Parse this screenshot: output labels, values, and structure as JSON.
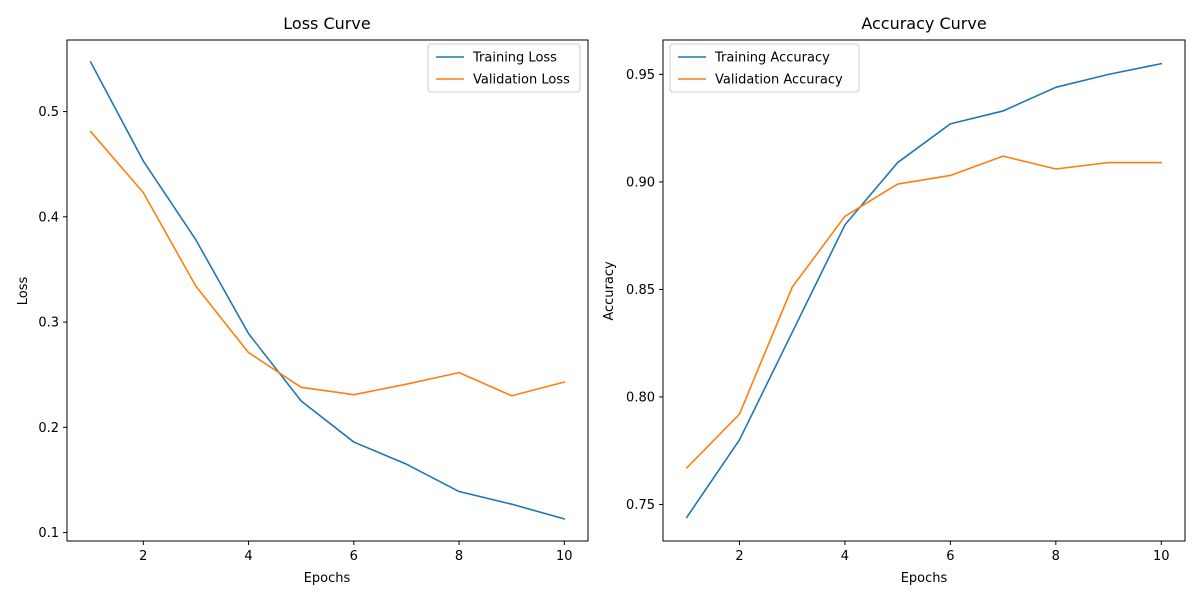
{
  "colors": {
    "series_1": "#1f77b4",
    "series_2": "#ff7f0e"
  },
  "chart_data": [
    {
      "type": "line",
      "title": "Loss Curve",
      "xlabel": "Epochs",
      "ylabel": "Loss",
      "x": [
        1,
        2,
        3,
        4,
        5,
        6,
        7,
        8,
        9,
        10
      ],
      "xlim": [
        0.55,
        10.45
      ],
      "ylim": [
        0.092,
        0.568
      ],
      "xticks": [
        2,
        4,
        6,
        8,
        10
      ],
      "xtick_labels": [
        "2",
        "4",
        "6",
        "8",
        "10"
      ],
      "yticks": [
        0.1,
        0.2,
        0.3,
        0.4,
        0.5
      ],
      "ytick_labels": [
        "0.1",
        "0.2",
        "0.3",
        "0.4",
        "0.5"
      ],
      "grid": false,
      "legend": "top-right",
      "series": [
        {
          "name": "Training Loss",
          "color": "#1f77b4",
          "values": [
            0.547,
            0.453,
            0.378,
            0.289,
            0.225,
            0.186,
            0.165,
            0.139,
            0.127,
            0.113
          ]
        },
        {
          "name": "Validation Loss",
          "color": "#ff7f0e",
          "values": [
            0.481,
            0.423,
            0.334,
            0.271,
            0.238,
            0.231,
            0.241,
            0.252,
            0.23,
            0.243
          ]
        }
      ]
    },
    {
      "type": "line",
      "title": "Accuracy Curve",
      "xlabel": "Epochs",
      "ylabel": "Accuracy",
      "x": [
        1,
        2,
        3,
        4,
        5,
        6,
        7,
        8,
        9,
        10
      ],
      "xlim": [
        0.55,
        10.45
      ],
      "ylim": [
        0.733,
        0.966
      ],
      "xticks": [
        2,
        4,
        6,
        8,
        10
      ],
      "xtick_labels": [
        "2",
        "4",
        "6",
        "8",
        "10"
      ],
      "yticks": [
        0.75,
        0.8,
        0.85,
        0.9,
        0.95
      ],
      "ytick_labels": [
        "0.75",
        "0.80",
        "0.85",
        "0.90",
        "0.95"
      ],
      "grid": false,
      "legend": "top-left",
      "series": [
        {
          "name": "Training Accuracy",
          "color": "#1f77b4",
          "values": [
            0.744,
            0.78,
            0.83,
            0.88,
            0.909,
            0.927,
            0.933,
            0.944,
            0.95,
            0.955
          ]
        },
        {
          "name": "Validation Accuracy",
          "color": "#ff7f0e",
          "values": [
            0.767,
            0.792,
            0.851,
            0.884,
            0.899,
            0.903,
            0.912,
            0.906,
            0.909,
            0.909
          ]
        }
      ]
    }
  ]
}
